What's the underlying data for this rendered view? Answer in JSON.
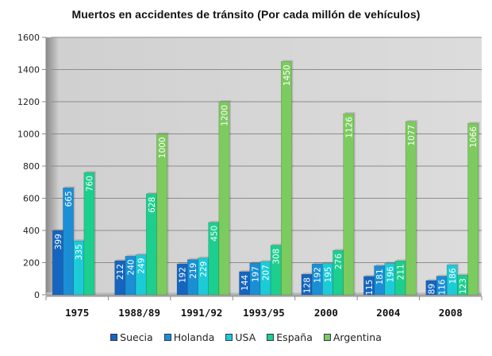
{
  "chart_data": {
    "type": "bar",
    "title": "Muertos en accidentes de tránsito (Por cada millón de vehículos)",
    "xlabel": "",
    "ylabel": "",
    "ylim": [
      0,
      1600
    ],
    "yticks": [
      0,
      200,
      400,
      600,
      800,
      1000,
      1200,
      1400,
      1600
    ],
    "grid": true,
    "legend_position": "bottom",
    "categories": [
      "1975",
      "1988/89",
      "1991/92",
      "1993/95",
      "2000",
      "2004",
      "2008"
    ],
    "series": [
      {
        "name": "Suecia",
        "color": "#1565c0",
        "values": [
          399,
          212,
          192,
          144,
          128,
          115,
          89
        ]
      },
      {
        "name": "Holanda",
        "color": "#1a8fd6",
        "values": [
          665,
          240,
          219,
          197,
          192,
          181,
          116
        ]
      },
      {
        "name": "USA",
        "color": "#1ccbd8",
        "values": [
          335,
          249,
          229,
          207,
          195,
          196,
          186
        ]
      },
      {
        "name": "España",
        "color": "#1ccf8e",
        "values": [
          760,
          628,
          450,
          308,
          276,
          211,
          123
        ]
      },
      {
        "name": "Argentina",
        "color": "#7ccb5e",
        "values": [
          null,
          1000,
          1200,
          1450,
          1126,
          1077,
          1066
        ]
      }
    ]
  }
}
